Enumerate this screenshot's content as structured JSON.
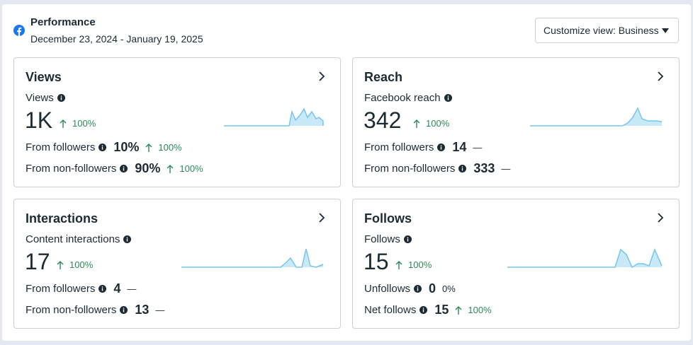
{
  "header": {
    "title": "Performance",
    "date_range": "December 23, 2024 - January 19, 2025",
    "customize_label": "Customize view: Business",
    "brand_color": "#1877f2"
  },
  "colors": {
    "positive": "#2a8a57",
    "spark_line": "#76c6ec",
    "spark_fill": "#c8e9f8"
  },
  "cards": {
    "views": {
      "title": "Views",
      "metric_label": "Views",
      "value": "1K",
      "change": "100%",
      "rows": [
        {
          "label": "From followers",
          "value": "10%",
          "change": "100%"
        },
        {
          "label": "From non-followers",
          "value": "90%",
          "change": "100%"
        }
      ]
    },
    "reach": {
      "title": "Reach",
      "metric_label": "Facebook reach",
      "value": "342",
      "change": "100%",
      "rows": [
        {
          "label": "From followers",
          "value": "14",
          "change": "—"
        },
        {
          "label": "From non-followers",
          "value": "333",
          "change": "—"
        }
      ]
    },
    "interactions": {
      "title": "Interactions",
      "metric_label": "Content interactions",
      "value": "17",
      "change": "100%",
      "rows": [
        {
          "label": "From followers",
          "value": "4",
          "change": "—"
        },
        {
          "label": "From non-followers",
          "value": "13",
          "change": "—"
        }
      ]
    },
    "follows": {
      "title": "Follows",
      "metric_label": "Follows",
      "value": "15",
      "change": "100%",
      "rows": [
        {
          "label": "Unfollows",
          "value": "0",
          "change": "0%"
        },
        {
          "label": "Net follows",
          "value": "15",
          "change": "100%"
        }
      ]
    }
  }
}
